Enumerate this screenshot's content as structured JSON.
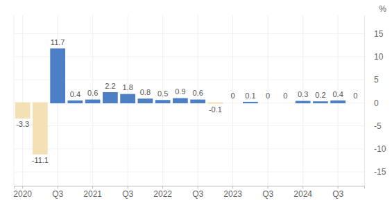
{
  "chart_data": {
    "type": "bar",
    "ylabel": "%",
    "categories": [
      "2020",
      null,
      "Q3",
      null,
      "2021",
      null,
      "Q3",
      null,
      "2022",
      null,
      "Q3",
      null,
      "2023",
      null,
      "Q3",
      null,
      "2024",
      null,
      "Q3",
      null
    ],
    "values": [
      -3.3,
      -11.1,
      11.7,
      0.4,
      0.6,
      2.2,
      1.8,
      0.8,
      0.5,
      0.9,
      0.6,
      -0.1,
      0,
      0.1,
      0,
      0,
      0.3,
      0.2,
      0.4,
      0
    ],
    "colors": [
      "#f4e0b5",
      "#f4e0b5",
      "#4d7fc6",
      "#4d7fc6",
      "#4d7fc6",
      "#4d7fc6",
      "#4d7fc6",
      "#4d7fc6",
      "#4d7fc6",
      "#4d7fc6",
      "#4d7fc6",
      "#f4e0b5",
      "#4d7fc6",
      "#4d7fc6",
      "#4d7fc6",
      "#4d7fc6",
      "#4d7fc6",
      "#4d7fc6",
      "#4d7fc6",
      "#4d7fc6"
    ],
    "ylim": [
      -18,
      19
    ],
    "yticks": [
      -15,
      -10,
      -5,
      0,
      5,
      10,
      15
    ],
    "grid": true,
    "data_labels": true
  }
}
